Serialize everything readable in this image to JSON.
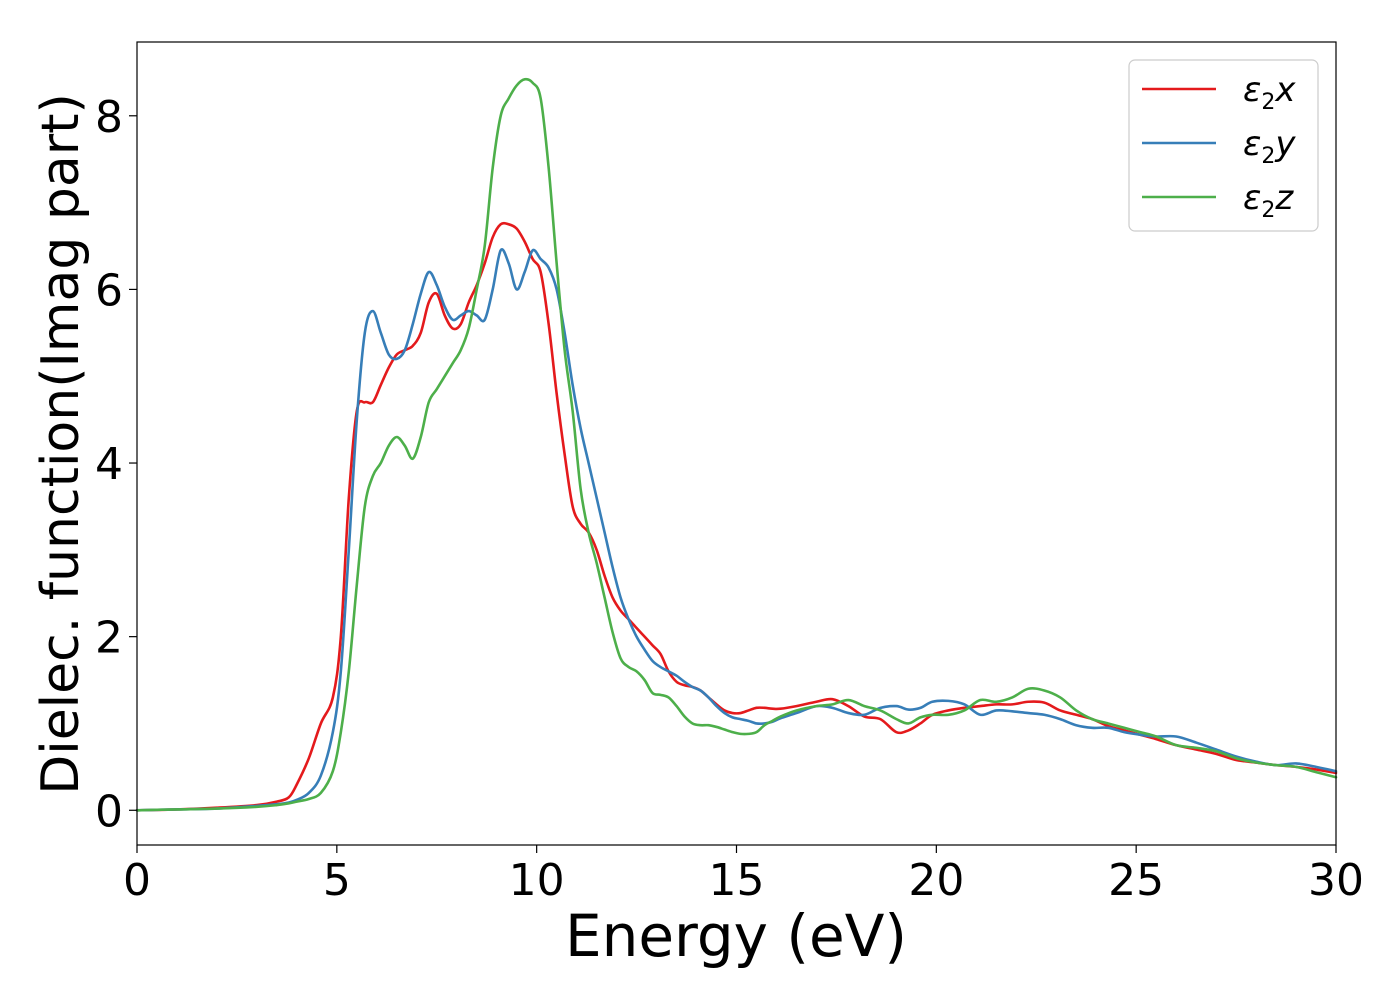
{
  "chart_data": {
    "type": "line",
    "xlabel": "Energy (eV)",
    "ylabel": "Dielec. function(Imag part)",
    "xlim": [
      0,
      30
    ],
    "ylim": [
      -0.4,
      8.85
    ],
    "xticks": [
      0,
      5,
      10,
      15,
      20,
      25,
      30
    ],
    "yticks": [
      0,
      2,
      4,
      6,
      8
    ],
    "grid": false,
    "legend_position": "top-right",
    "series": [
      {
        "name": "ε₂x",
        "legend_base": "ε",
        "legend_sub": "2",
        "legend_tail": "x",
        "color": "#e41a1c",
        "x": [
          0,
          1,
          2,
          3,
          3.5,
          3.8,
          4.0,
          4.3,
          4.6,
          4.9,
          5.1,
          5.3,
          5.5,
          5.7,
          5.9,
          6.1,
          6.3,
          6.5,
          6.7,
          6.9,
          7.1,
          7.3,
          7.5,
          7.7,
          7.9,
          8.1,
          8.3,
          8.5,
          8.7,
          8.9,
          9.1,
          9.3,
          9.5,
          9.7,
          9.9,
          10.1,
          10.3,
          10.5,
          10.7,
          10.9,
          11.1,
          11.3,
          11.5,
          11.7,
          11.9,
          12.1,
          12.3,
          12.5,
          12.7,
          12.9,
          13.1,
          13.3,
          13.5,
          13.7,
          13.9,
          14.1,
          14.3,
          14.5,
          14.7,
          14.9,
          15.1,
          15.3,
          15.5,
          15.7,
          15.9,
          16.1,
          16.5,
          17.0,
          17.4,
          17.8,
          18.2,
          18.6,
          19.0,
          19.3,
          19.6,
          19.9,
          20.3,
          20.7,
          21.1,
          21.5,
          21.9,
          22.3,
          22.7,
          23.1,
          23.5,
          23.9,
          24.3,
          24.7,
          25.1,
          25.5,
          26.0,
          26.5,
          27.0,
          27.5,
          28.0,
          28.5,
          29.0,
          29.5,
          30.0
        ],
        "y": [
          0.0,
          0.01,
          0.03,
          0.06,
          0.1,
          0.15,
          0.3,
          0.6,
          1.0,
          1.3,
          2.0,
          3.6,
          4.6,
          4.7,
          4.7,
          4.9,
          5.1,
          5.25,
          5.3,
          5.35,
          5.5,
          5.85,
          5.95,
          5.7,
          5.55,
          5.6,
          5.85,
          6.05,
          6.3,
          6.6,
          6.75,
          6.75,
          6.7,
          6.55,
          6.35,
          6.2,
          5.6,
          4.8,
          4.1,
          3.5,
          3.3,
          3.2,
          3.0,
          2.7,
          2.45,
          2.3,
          2.2,
          2.1,
          2.0,
          1.9,
          1.8,
          1.6,
          1.48,
          1.44,
          1.42,
          1.38,
          1.3,
          1.22,
          1.15,
          1.12,
          1.12,
          1.15,
          1.18,
          1.18,
          1.17,
          1.17,
          1.2,
          1.25,
          1.28,
          1.2,
          1.08,
          1.05,
          0.9,
          0.92,
          1.0,
          1.1,
          1.15,
          1.18,
          1.2,
          1.22,
          1.22,
          1.25,
          1.24,
          1.15,
          1.1,
          1.05,
          0.97,
          0.92,
          0.87,
          0.82,
          0.75,
          0.7,
          0.65,
          0.58,
          0.55,
          0.52,
          0.5,
          0.47,
          0.43
        ]
      },
      {
        "name": "ε₂y",
        "legend_base": "ε",
        "legend_sub": "2",
        "legend_tail": "y",
        "color": "#377eb8",
        "x": [
          0,
          1,
          2,
          3,
          3.5,
          3.8,
          4.0,
          4.3,
          4.6,
          4.9,
          5.1,
          5.3,
          5.5,
          5.7,
          5.9,
          6.1,
          6.3,
          6.5,
          6.7,
          6.9,
          7.1,
          7.3,
          7.5,
          7.7,
          7.9,
          8.1,
          8.3,
          8.5,
          8.7,
          8.9,
          9.1,
          9.3,
          9.5,
          9.7,
          9.9,
          10.1,
          10.3,
          10.5,
          10.7,
          10.9,
          11.1,
          11.3,
          11.5,
          11.7,
          11.9,
          12.1,
          12.3,
          12.5,
          12.7,
          12.9,
          13.1,
          13.3,
          13.5,
          13.7,
          13.9,
          14.1,
          14.3,
          14.5,
          14.7,
          14.9,
          15.1,
          15.3,
          15.5,
          15.7,
          15.9,
          16.1,
          16.5,
          17.0,
          17.4,
          17.8,
          18.2,
          18.6,
          19.0,
          19.3,
          19.6,
          19.9,
          20.3,
          20.7,
          21.1,
          21.5,
          21.9,
          22.3,
          22.7,
          23.1,
          23.5,
          23.9,
          24.3,
          24.7,
          25.1,
          25.5,
          26.0,
          26.5,
          27.0,
          27.5,
          28.0,
          28.5,
          29.0,
          29.5,
          30.0
        ],
        "y": [
          0.0,
          0.01,
          0.02,
          0.05,
          0.07,
          0.09,
          0.12,
          0.2,
          0.4,
          0.9,
          1.6,
          3.0,
          4.5,
          5.5,
          5.75,
          5.5,
          5.25,
          5.2,
          5.3,
          5.6,
          5.95,
          6.2,
          6.05,
          5.8,
          5.65,
          5.7,
          5.75,
          5.7,
          5.65,
          6.0,
          6.45,
          6.3,
          6.0,
          6.2,
          6.45,
          6.35,
          6.25,
          6.0,
          5.5,
          4.9,
          4.4,
          4.0,
          3.6,
          3.2,
          2.8,
          2.45,
          2.2,
          2.0,
          1.85,
          1.72,
          1.65,
          1.6,
          1.55,
          1.48,
          1.42,
          1.38,
          1.3,
          1.2,
          1.12,
          1.07,
          1.05,
          1.03,
          1.0,
          1.0,
          1.02,
          1.06,
          1.12,
          1.2,
          1.18,
          1.12,
          1.1,
          1.18,
          1.2,
          1.16,
          1.18,
          1.25,
          1.26,
          1.22,
          1.1,
          1.15,
          1.14,
          1.12,
          1.1,
          1.05,
          0.98,
          0.95,
          0.95,
          0.9,
          0.87,
          0.85,
          0.85,
          0.78,
          0.7,
          0.62,
          0.56,
          0.52,
          0.54,
          0.5,
          0.45
        ]
      },
      {
        "name": "ε₂z",
        "legend_base": "ε",
        "legend_sub": "2",
        "legend_tail": "z",
        "color": "#4daf4a",
        "x": [
          0,
          1,
          2,
          3,
          3.5,
          3.8,
          4.0,
          4.3,
          4.6,
          4.9,
          5.1,
          5.3,
          5.5,
          5.7,
          5.9,
          6.1,
          6.3,
          6.5,
          6.7,
          6.9,
          7.1,
          7.3,
          7.5,
          7.7,
          7.9,
          8.1,
          8.3,
          8.5,
          8.7,
          8.9,
          9.1,
          9.3,
          9.5,
          9.7,
          9.9,
          10.1,
          10.3,
          10.5,
          10.7,
          10.9,
          11.1,
          11.3,
          11.5,
          11.7,
          11.9,
          12.1,
          12.3,
          12.5,
          12.7,
          12.9,
          13.1,
          13.3,
          13.5,
          13.7,
          13.9,
          14.1,
          14.3,
          14.5,
          14.7,
          14.9,
          15.1,
          15.3,
          15.5,
          15.7,
          15.9,
          16.1,
          16.5,
          17.0,
          17.4,
          17.8,
          18.2,
          18.6,
          19.0,
          19.3,
          19.6,
          19.9,
          20.3,
          20.7,
          21.1,
          21.5,
          21.9,
          22.3,
          22.7,
          23.1,
          23.5,
          23.9,
          24.3,
          24.7,
          25.1,
          25.5,
          26.0,
          26.5,
          27.0,
          27.5,
          28.0,
          28.5,
          29.0,
          29.5,
          30.0
        ],
        "y": [
          0.0,
          0.01,
          0.02,
          0.04,
          0.06,
          0.08,
          0.1,
          0.13,
          0.2,
          0.45,
          0.9,
          1.6,
          2.6,
          3.5,
          3.85,
          4.0,
          4.2,
          4.3,
          4.2,
          4.05,
          4.3,
          4.7,
          4.85,
          5.0,
          5.15,
          5.3,
          5.55,
          6.0,
          6.5,
          7.4,
          8.0,
          8.2,
          8.35,
          8.42,
          8.38,
          8.2,
          7.4,
          6.3,
          5.3,
          4.6,
          3.7,
          3.2,
          2.85,
          2.45,
          2.05,
          1.75,
          1.65,
          1.6,
          1.5,
          1.35,
          1.33,
          1.3,
          1.2,
          1.08,
          1.0,
          0.98,
          0.98,
          0.96,
          0.93,
          0.9,
          0.88,
          0.88,
          0.9,
          0.98,
          1.03,
          1.08,
          1.15,
          1.2,
          1.22,
          1.27,
          1.2,
          1.15,
          1.05,
          1.0,
          1.07,
          1.1,
          1.1,
          1.15,
          1.27,
          1.25,
          1.3,
          1.4,
          1.38,
          1.3,
          1.15,
          1.05,
          1.0,
          0.95,
          0.9,
          0.85,
          0.75,
          0.72,
          0.68,
          0.6,
          0.55,
          0.52,
          0.5,
          0.44,
          0.38
        ]
      }
    ]
  }
}
